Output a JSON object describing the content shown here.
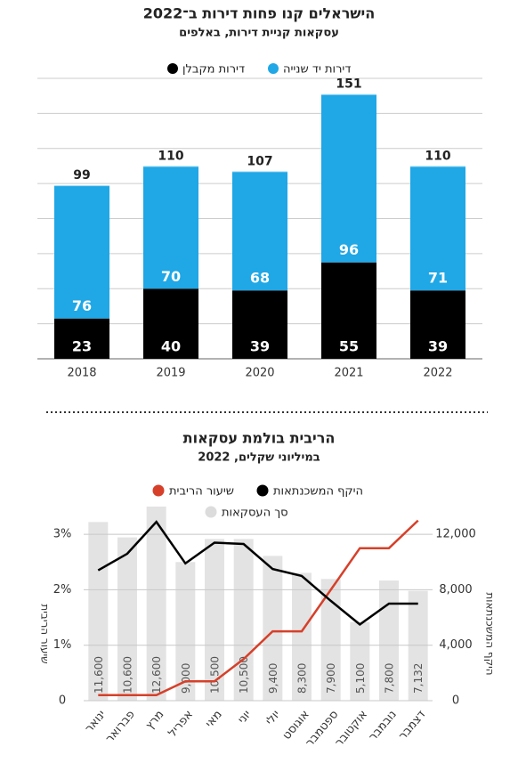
{
  "chart_data": [
    {
      "type": "bar",
      "stacked": true,
      "title": "הישראלים קנו פחות דירות ב־2022",
      "subtitle": "עסקאות קניית דירות, באלפים",
      "categories": [
        "2018",
        "2019",
        "2020",
        "2021",
        "2022"
      ],
      "series": [
        {
          "name": "דירות יד שנייה",
          "color": "#1fa7e6",
          "values": [
            76,
            70,
            68,
            96,
            71
          ]
        },
        {
          "name": "דירות מקבלן",
          "color": "#000000",
          "values": [
            23,
            40,
            39,
            55,
            39
          ]
        }
      ],
      "totals": [
        99,
        110,
        107,
        151,
        110
      ],
      "ylim": [
        0,
        160
      ],
      "yticks": [
        0,
        20,
        40,
        60,
        80,
        100,
        120,
        140,
        160
      ],
      "ytick_labels": false,
      "grid": true
    },
    {
      "type": "combo",
      "title": "הריבית בולמת עסקאות",
      "subtitle": "במיליוני שקלים, 2022",
      "categories": [
        "ינואר",
        "פברואר",
        "מרץ",
        "אפריל",
        "מאי",
        "יוני",
        "יולי",
        "אוגוסט",
        "ספטמבר",
        "אוקטובר",
        "נובמבר",
        "דצמבר"
      ],
      "ylabel": "שיעור הריבית",
      "y2label": "היקף המשכנתאות",
      "series": [
        {
          "name": "שיעור הריבית",
          "type": "line",
          "color": "#d6402a",
          "axis": "y",
          "values": [
            0.1,
            0.1,
            0.1,
            0.35,
            0.35,
            0.75,
            1.25,
            1.25,
            2.0,
            2.75,
            2.75,
            3.25
          ]
        },
        {
          "name": "היקף המשכנתאות",
          "type": "line",
          "color": "#000000",
          "axis": "y2",
          "values": [
            9400,
            10600,
            12900,
            9900,
            11400,
            11300,
            9500,
            9000,
            7200,
            5500,
            7000,
            7000
          ]
        },
        {
          "name": "סך העסקאות",
          "type": "bar",
          "color": "#e3e3e3",
          "axis": "y3",
          "values": [
            11600,
            10600,
            12600,
            9000,
            10500,
            10500,
            9400,
            8300,
            7900,
            5100,
            7800,
            7132
          ],
          "value_labels": [
            "11,600",
            "10,600",
            "12,600",
            "9,000",
            "10,500",
            "10,500",
            "9,400",
            "8,300",
            "7,900",
            "5,100",
            "7,800",
            "7,132"
          ]
        }
      ],
      "ylim": [
        0,
        3.5
      ],
      "yticks": [
        0,
        {
          "value": 1,
          "label": "1%"
        },
        {
          "value": 2,
          "label": "2%"
        },
        {
          "value": 3,
          "label": "3%"
        }
      ],
      "y2lim": [
        0,
        14000
      ],
      "y2ticks": [
        0,
        {
          "value": 4000,
          "label": "4,000"
        },
        {
          "value": 8000,
          "label": "8,000"
        },
        {
          "value": 12000,
          "label": "12,000"
        }
      ],
      "y3lim": [
        0,
        12600
      ],
      "grid": true
    }
  ]
}
